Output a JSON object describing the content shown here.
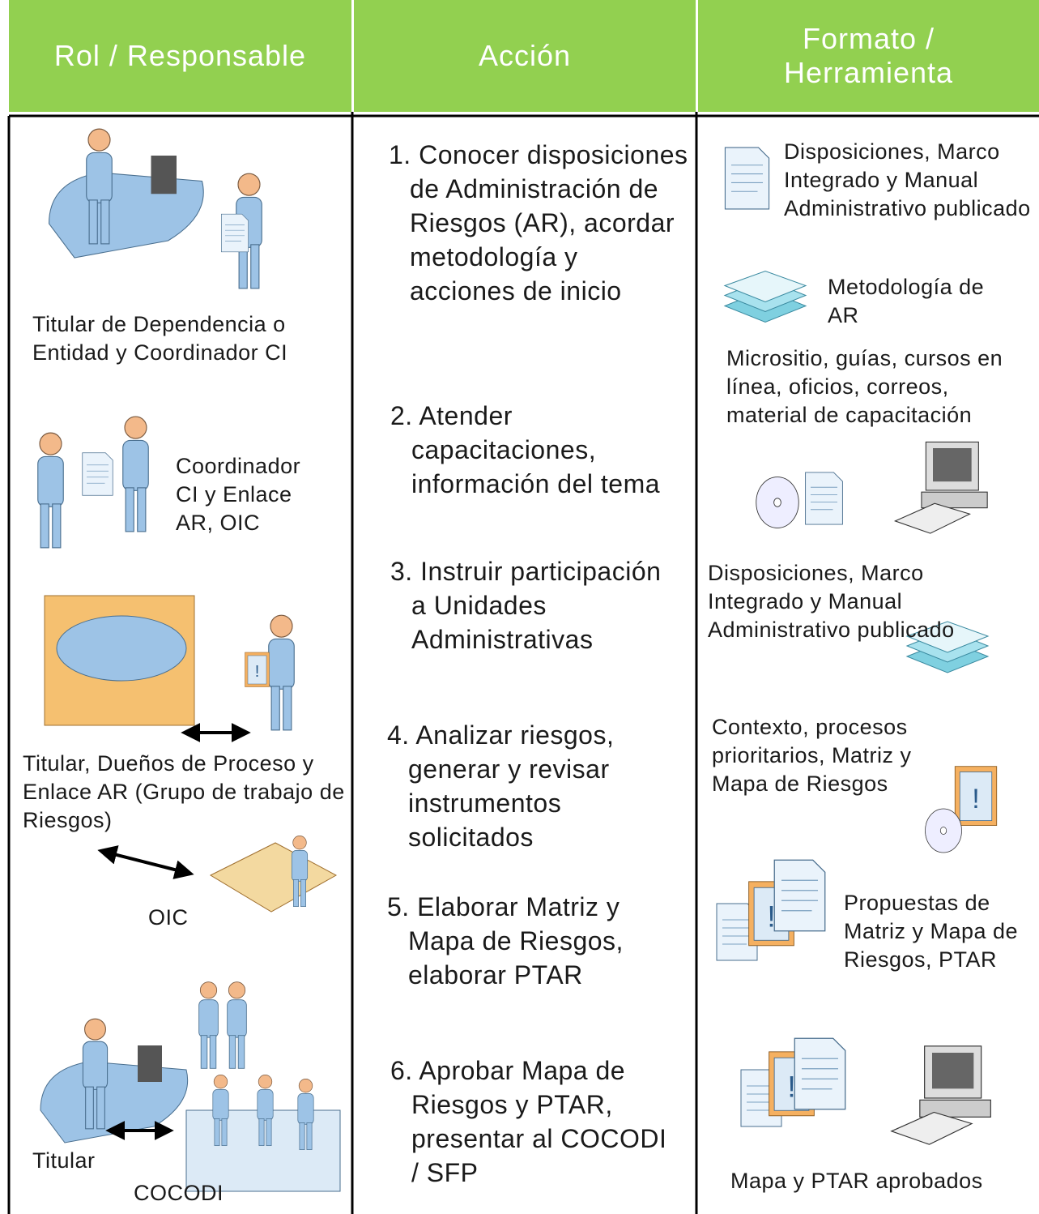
{
  "header": {
    "columns": [
      "Rol / Responsable",
      "Acción",
      "Formato / Herramienta"
    ]
  },
  "roles": [
    "Titular de Dependencia o Entidad y Coordinador CI",
    "Coordinador CI y Enlace AR, OIC",
    "Titular, Dueños de Proceso y Enlace AR (Grupo de trabajo de Riesgos)",
    "OIC",
    "Titular",
    "COCODI"
  ],
  "actions": [
    "1. Conocer disposiciones de Administración de Riesgos (AR), acordar metodología y acciones de inicio",
    "2. Atender capacitaciones, información del tema",
    "3. Instruir participación a Unidades Administrativas",
    "4. Analizar riesgos, generar y revisar instrumentos solicitados",
    "5. Elaborar Matriz y Mapa de Riesgos, elaborar PTAR",
    "6. Aprobar Mapa de Riesgos y PTAR, presentar al COCODI / SFP"
  ],
  "tools": [
    "Disposiciones, Marco Integrado y Manual Administrativo publicado",
    "Metodología de AR",
    "Micrositio, guías, cursos en línea, oficios, correos, material de capacitación",
    "Disposiciones, Marco Integrado y Manual Administrativo publicado",
    "Contexto, procesos prioritarios, Matriz y Mapa de Riesgos",
    "Propuestas de Matriz y Mapa de Riesgos, PTAR",
    "Mapa y PTAR aprobados"
  ]
}
